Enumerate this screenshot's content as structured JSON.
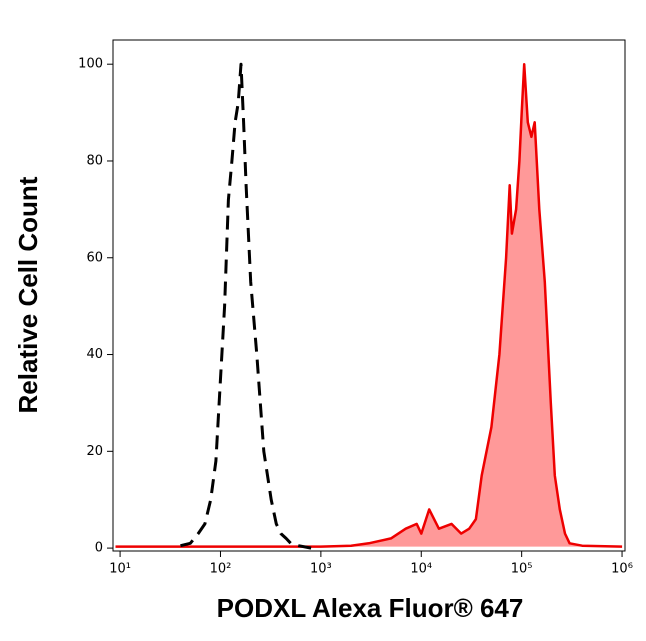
{
  "chart_data": {
    "type": "line",
    "xscale": "log",
    "xlabel": "PODXL Alexa Fluor® 647",
    "ylabel": "Relative Cell Count",
    "xlim": [
      8.5,
      1070000
    ],
    "ylim": [
      -0.6,
      105
    ],
    "xticks": [
      {
        "value": 10,
        "label": "10¹"
      },
      {
        "value": 100,
        "label": "10²"
      },
      {
        "value": 1000,
        "label": "10³"
      },
      {
        "value": 10000,
        "label": "10⁴"
      },
      {
        "value": 100000,
        "label": "10⁵"
      },
      {
        "value": 1000000,
        "label": "10⁶"
      }
    ],
    "yticks": [
      0,
      20,
      40,
      60,
      80,
      100
    ],
    "series": [
      {
        "color": "#000000",
        "line_style": "dashed",
        "x": [
          40,
          50,
          60,
          70,
          80,
          90,
          100,
          110,
          120,
          130,
          140,
          150,
          160,
          170,
          180,
          200,
          230,
          270,
          320,
          360,
          400,
          450,
          500,
          600,
          800
        ],
        "values": [
          0.5,
          1,
          3,
          5,
          10,
          18,
          35,
          50,
          72,
          80,
          88,
          92,
          100,
          88,
          75,
          55,
          40,
          20,
          10,
          5,
          3,
          2,
          1,
          0.5,
          0
        ]
      },
      {
        "color": "#ee0000",
        "fill": "#ff9999",
        "x": [
          9,
          50,
          200,
          1000,
          2000,
          3000,
          5000,
          7000,
          9000,
          10000,
          12000,
          15000,
          20000,
          25000,
          30000,
          35000,
          40000,
          50000,
          60000,
          70000,
          76000,
          80000,
          88000,
          95000,
          100000,
          106000,
          115000,
          125000,
          135000,
          150000,
          170000,
          195000,
          214000,
          240000,
          270000,
          300000,
          400000,
          1000000
        ],
        "values": [
          0.3,
          0.3,
          0.3,
          0.3,
          0.5,
          1,
          2,
          4,
          5,
          3,
          8,
          4,
          5,
          3,
          4,
          6,
          15,
          25,
          40,
          60,
          75,
          65,
          70,
          80,
          90,
          100,
          88,
          85,
          88,
          70,
          55,
          30,
          15,
          8,
          3,
          1,
          0.5,
          0.3
        ]
      }
    ]
  }
}
